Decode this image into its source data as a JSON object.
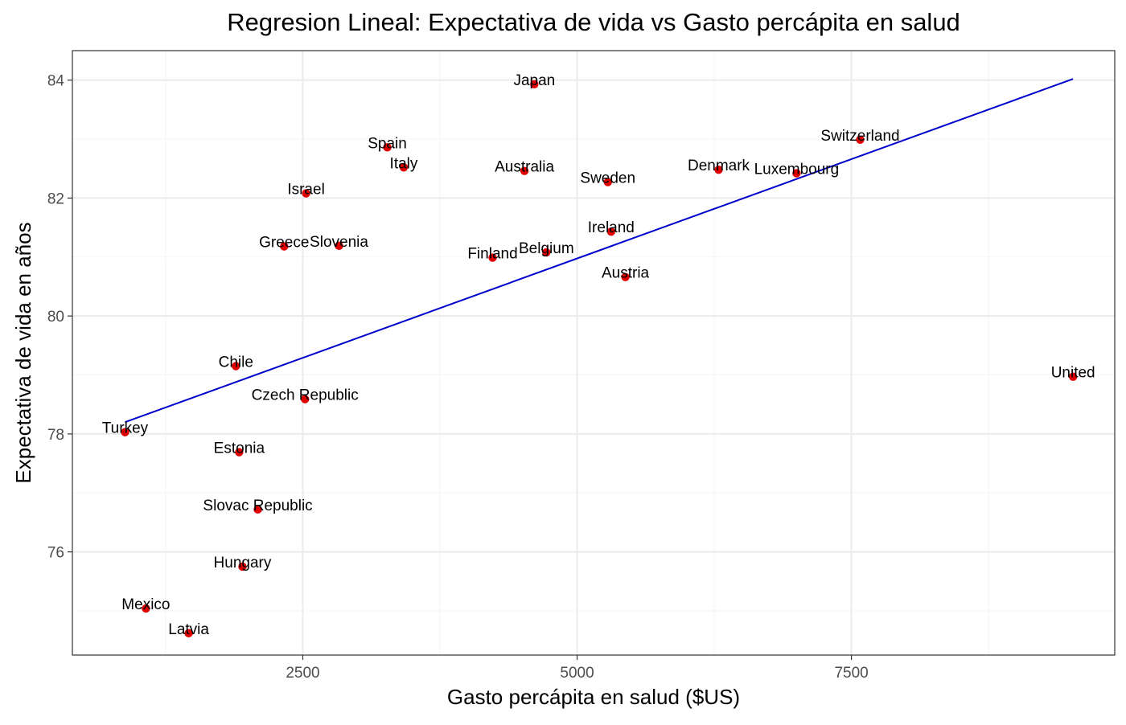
{
  "chart_data": {
    "type": "scatter",
    "title": "Regresion Lineal: Expectativa de vida vs Gasto percápita en salud",
    "xlabel": "Gasto percápita en salud ($US)",
    "ylabel": "Expectativa de vida en años",
    "xlim": [
      400,
      9900
    ],
    "ylim": [
      74.25,
      84.5
    ],
    "xticks": [
      2500,
      5000,
      7500
    ],
    "yticks": [
      76,
      78,
      80,
      82,
      84
    ],
    "grid": true,
    "colors": {
      "points": "#e00000",
      "line": "#0000cc",
      "panel_border": "#333333",
      "grid_major": "#ebebeb",
      "grid_minor": "#f5f5f5"
    },
    "points": [
      {
        "label": "Japan",
        "x": 4610,
        "y": 83.93
      },
      {
        "label": "Spain",
        "x": 3270,
        "y": 82.86
      },
      {
        "label": "Italy",
        "x": 3420,
        "y": 82.52
      },
      {
        "label": "Australia",
        "x": 4520,
        "y": 82.46
      },
      {
        "label": "Sweden",
        "x": 5280,
        "y": 82.27
      },
      {
        "label": "Switzerland",
        "x": 7580,
        "y": 82.99
      },
      {
        "label": "Denmark",
        "x": 6290,
        "y": 82.48
      },
      {
        "label": "Luxembourg",
        "x": 7000,
        "y": 82.42
      },
      {
        "label": "Israel",
        "x": 2530,
        "y": 82.08
      },
      {
        "label": "Greece",
        "x": 2330,
        "y": 81.18
      },
      {
        "label": "Slovenia",
        "x": 2830,
        "y": 81.19
      },
      {
        "label": "Finland",
        "x": 4230,
        "y": 80.99
      },
      {
        "label": "Belgium",
        "x": 4720,
        "y": 81.08
      },
      {
        "label": "Ireland",
        "x": 5310,
        "y": 81.43
      },
      {
        "label": "Austria",
        "x": 5440,
        "y": 80.66
      },
      {
        "label": "Chile",
        "x": 1890,
        "y": 79.15
      },
      {
        "label": "Czech Republic",
        "x": 2520,
        "y": 78.59
      },
      {
        "label": "Turkey",
        "x": 880,
        "y": 78.03
      },
      {
        "label": "Estonia",
        "x": 1920,
        "y": 77.69
      },
      {
        "label": "Slovac Republic",
        "x": 2090,
        "y": 76.72
      },
      {
        "label": "Hungary",
        "x": 1950,
        "y": 75.75
      },
      {
        "label": "Mexico",
        "x": 1070,
        "y": 75.04
      },
      {
        "label": "Latvia",
        "x": 1460,
        "y": 74.62
      },
      {
        "label": "United",
        "x": 9520,
        "y": 78.97
      }
    ],
    "regression": {
      "x": [
        880,
        9520
      ],
      "y": [
        78.2,
        84.02
      ]
    }
  }
}
